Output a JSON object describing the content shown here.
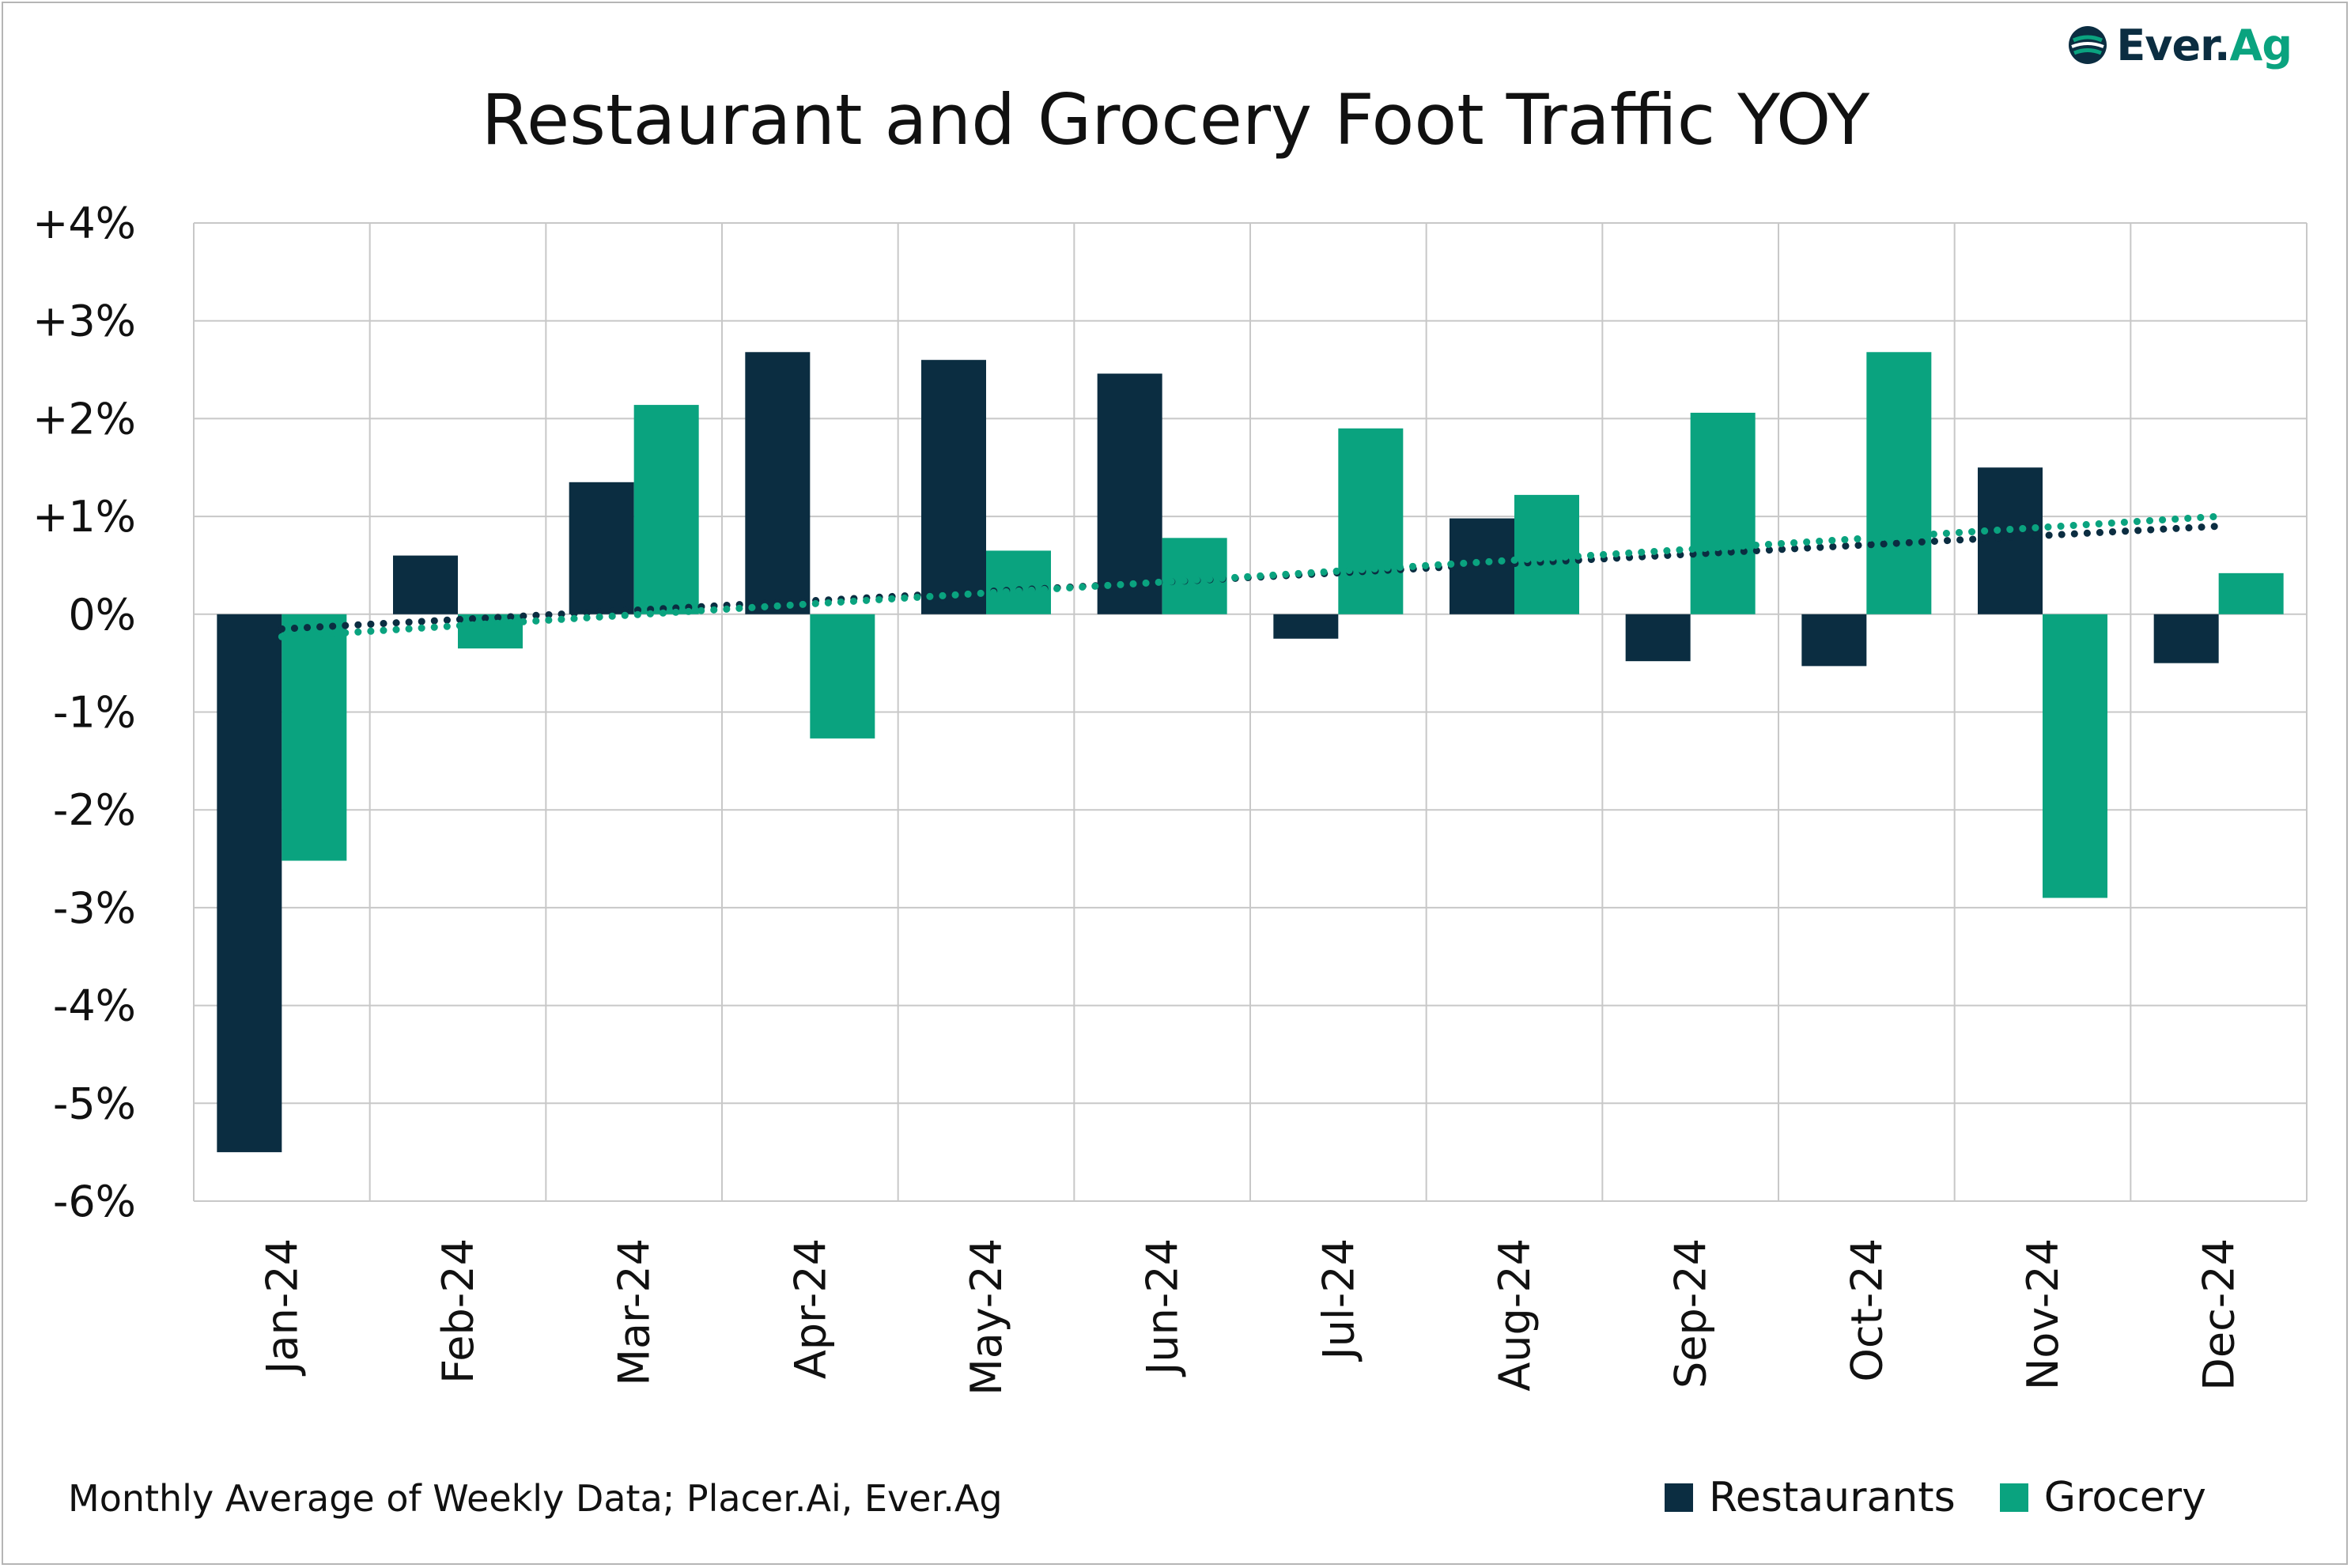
{
  "brand": {
    "name_main": "Ever.",
    "name_accent": "Ag"
  },
  "footnote": "Monthly Average of Weekly Data; Placer.Ai, Ever.Ag",
  "colors": {
    "restaurants": "#0b2d41",
    "grocery": "#0aa37f",
    "grid": "#c8c8c8"
  },
  "chart_data": {
    "type": "bar",
    "title": "Restaurant and Grocery Foot Traffic YOY",
    "categories": [
      "Jan-24",
      "Feb-24",
      "Mar-24",
      "Apr-24",
      "May-24",
      "Jun-24",
      "Jul-24",
      "Aug-24",
      "Sep-24",
      "Oct-24",
      "Nov-24",
      "Dec-24"
    ],
    "series": [
      {
        "name": "Restaurants",
        "values": [
          -5.5,
          0.6,
          1.35,
          2.68,
          2.6,
          2.46,
          -0.25,
          0.98,
          -0.48,
          -0.53,
          1.5,
          -0.5
        ]
      },
      {
        "name": "Grocery",
        "values": [
          -2.52,
          -0.35,
          2.14,
          -1.27,
          0.65,
          0.78,
          1.9,
          1.22,
          2.06,
          2.68,
          -2.9,
          0.42
        ]
      }
    ],
    "trendlines": [
      {
        "series": "Restaurants",
        "style": "dotted",
        "start": -0.15,
        "end": 0.9
      },
      {
        "series": "Grocery",
        "style": "dotted",
        "start": -0.23,
        "end": 1.0
      }
    ],
    "ylim": [
      -6,
      4
    ],
    "yticks": [
      4,
      3,
      2,
      1,
      0,
      -1,
      -2,
      -3,
      -4,
      -5,
      -6
    ],
    "ytick_labels": [
      "+4%",
      "+3%",
      "+2%",
      "+1%",
      "0%",
      "-1%",
      "-2%",
      "-3%",
      "-4%",
      "-5%",
      "-6%"
    ],
    "grid": true,
    "legend": "bottom-right"
  }
}
